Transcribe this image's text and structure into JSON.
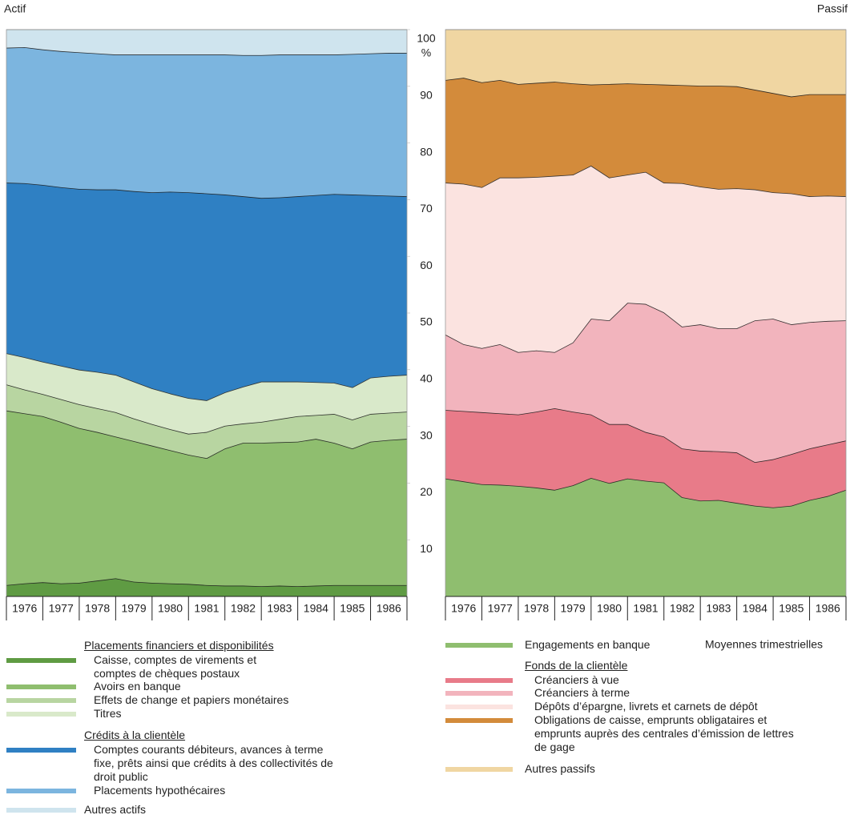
{
  "chart_data": [
    {
      "type": "stacked-area",
      "title": "Actif",
      "x": [
        1976,
        1976.5,
        1977,
        1977.5,
        1978,
        1978.5,
        1979,
        1979.5,
        1980,
        1980.5,
        1981,
        1981.5,
        1982,
        1982.5,
        1983,
        1983.5,
        1984,
        1984.5,
        1985,
        1985.5,
        1986,
        1986.5,
        1987
      ],
      "xlim": [
        1976,
        1987
      ],
      "xticks": [
        1976,
        1977,
        1978,
        1979,
        1980,
        1981,
        1982,
        1983,
        1984,
        1985,
        1986
      ],
      "ylim": [
        0,
        100
      ],
      "yticks": [
        10,
        20,
        30,
        40,
        50,
        60,
        70,
        80,
        90,
        100
      ],
      "y_unit": "%",
      "series": [
        {
          "name": "Caisse, comptes de virements et comptes de chèques postaux",
          "heading": "Placements financiers et disponibilités",
          "color": "#5f9b43",
          "values": [
            2.0,
            2.3,
            2.5,
            2.3,
            2.4,
            2.8,
            3.2,
            2.6,
            2.4,
            2.3,
            2.2,
            2.0,
            1.9,
            1.9,
            1.8,
            1.9,
            1.8,
            1.9,
            2.0,
            2.0,
            2.0,
            2.0,
            2.0
          ]
        },
        {
          "name": "Avoirs en banque",
          "color": "#8fbe6f",
          "values": [
            30.8,
            30.0,
            29.3,
            28.5,
            27.3,
            26.2,
            25.0,
            24.8,
            24.2,
            23.5,
            22.8,
            22.4,
            24.2,
            25.2,
            25.3,
            25.3,
            25.5,
            25.9,
            25.1,
            24.1,
            25.3,
            25.6,
            25.8
          ]
        },
        {
          "name": "Effets de change et papiers monétaires",
          "color": "#b8d5a1",
          "values": [
            4.6,
            4.2,
            3.9,
            4.0,
            4.2,
            4.2,
            4.3,
            4.0,
            3.8,
            3.7,
            3.7,
            4.6,
            4.0,
            3.4,
            3.7,
            4.1,
            4.5,
            4.2,
            5.1,
            5.1,
            4.9,
            4.8,
            4.8
          ]
        },
        {
          "name": "Titres",
          "color": "#d9e9ca",
          "values": [
            5.5,
            5.7,
            5.7,
            5.9,
            6.1,
            6.4,
            6.6,
            6.5,
            6.3,
            6.3,
            6.3,
            5.6,
            5.9,
            6.5,
            7.1,
            6.6,
            6.1,
            5.8,
            5.5,
            5.7,
            6.4,
            6.5,
            6.5
          ]
        },
        {
          "name": "Comptes courants débiteurs, avances à terme fixe, prêts ainsi que crédits à des collectivités de droit public",
          "heading": "Crédits à la clientèle",
          "color": "#2f80c3",
          "values": [
            30.1,
            30.7,
            31.2,
            31.5,
            31.9,
            32.2,
            32.7,
            33.6,
            34.6,
            35.6,
            36.3,
            36.5,
            34.9,
            33.6,
            32.4,
            32.5,
            32.7,
            33.0,
            33.3,
            34.0,
            32.2,
            31.8,
            31.5
          ]
        },
        {
          "name": "Placements hypothécaires",
          "color": "#7cb5df",
          "values": [
            23.8,
            24.0,
            23.9,
            24.0,
            24.1,
            24.0,
            23.8,
            24.1,
            24.3,
            24.2,
            24.3,
            24.5,
            24.7,
            24.9,
            25.2,
            25.2,
            25.0,
            24.8,
            24.6,
            24.8,
            25.0,
            25.2,
            25.3
          ]
        },
        {
          "name": "Autres actifs",
          "color": "#cfe4ee",
          "values": [
            3.2,
            3.1,
            3.5,
            3.8,
            4.0,
            4.2,
            4.4,
            4.4,
            4.4,
            4.4,
            4.4,
            4.4,
            4.4,
            4.5,
            4.5,
            4.4,
            4.4,
            4.4,
            4.4,
            4.3,
            4.2,
            4.1,
            4.1
          ]
        }
      ]
    },
    {
      "type": "stacked-area",
      "title": "Passif",
      "note": "Moyennes trimestrielles",
      "x": [
        1976,
        1976.5,
        1977,
        1977.5,
        1978,
        1978.5,
        1979,
        1979.5,
        1980,
        1980.5,
        1981,
        1981.5,
        1982,
        1982.5,
        1983,
        1983.5,
        1984,
        1984.5,
        1985,
        1985.5,
        1986,
        1986.5,
        1987
      ],
      "xlim": [
        1976,
        1987
      ],
      "xticks": [
        1976,
        1977,
        1978,
        1979,
        1980,
        1981,
        1982,
        1983,
        1984,
        1985,
        1986
      ],
      "ylim": [
        0,
        100
      ],
      "series": [
        {
          "name": "Engagements en banque",
          "color": "#8fbe6f",
          "values": [
            20.8,
            20.3,
            19.8,
            19.7,
            19.5,
            19.2,
            18.8,
            19.6,
            20.9,
            20.0,
            20.8,
            20.4,
            20.1,
            17.5,
            16.9,
            17.0,
            16.5,
            16.0,
            15.7,
            16.0,
            17.0,
            17.7,
            18.8
          ]
        },
        {
          "name": "Créanciers à vue",
          "heading": "Fonds de la clientèle",
          "color": "#e87b89",
          "values": [
            12.1,
            12.4,
            12.7,
            12.6,
            12.6,
            13.4,
            14.4,
            13.0,
            11.2,
            10.4,
            9.6,
            8.6,
            8.1,
            8.6,
            8.8,
            8.6,
            8.9,
            7.7,
            8.5,
            9.1,
            9.1,
            9.1,
            8.7
          ]
        },
        {
          "name": "Créanciers à terme",
          "color": "#f2b4bd",
          "values": [
            13.3,
            11.8,
            11.3,
            12.2,
            11.0,
            10.8,
            9.9,
            12.2,
            16.9,
            18.3,
            21.4,
            22.6,
            21.9,
            21.5,
            22.3,
            21.7,
            21.9,
            25.0,
            24.8,
            22.9,
            22.3,
            21.8,
            21.2
          ]
        },
        {
          "name": "Dépôts d’épargne, livrets et carnets de dépôt",
          "color": "#fbe3e0",
          "values": [
            26.8,
            28.3,
            28.4,
            29.4,
            30.8,
            30.6,
            31.1,
            29.6,
            27.0,
            25.2,
            22.6,
            23.3,
            22.9,
            25.3,
            24.3,
            24.6,
            24.7,
            23.1,
            22.3,
            23.1,
            22.2,
            22.1,
            21.9
          ]
        },
        {
          "name": "Obligations de caisse, emprunts obligataires et emprunts auprès des centrales d’émission de lettres de gage",
          "color": "#d38b3b",
          "values": [
            18.1,
            18.7,
            18.5,
            17.2,
            16.5,
            16.6,
            16.6,
            16.1,
            14.3,
            16.5,
            16.1,
            15.5,
            17.3,
            17.3,
            17.8,
            18.2,
            18.0,
            17.6,
            17.5,
            17.1,
            18.0,
            17.9,
            18.0
          ]
        },
        {
          "name": "Autres passifs",
          "color": "#f0d6a2",
          "values": [
            8.9,
            8.5,
            9.3,
            8.9,
            9.6,
            9.4,
            9.2,
            9.5,
            9.7,
            9.6,
            9.5,
            9.6,
            9.7,
            9.8,
            9.9,
            9.9,
            10.0,
            10.6,
            11.2,
            11.8,
            11.4,
            11.4,
            11.4
          ]
        }
      ]
    }
  ]
}
